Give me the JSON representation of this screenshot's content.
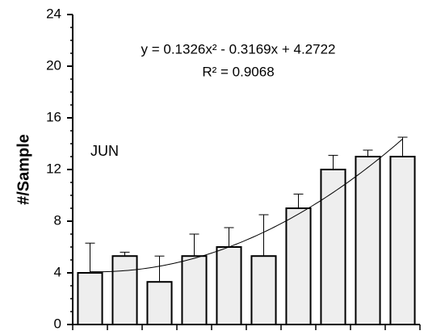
{
  "chart_data": {
    "type": "bar",
    "y_label": "#/Sample",
    "annotation": "JUN",
    "categories": [
      null,
      null,
      null,
      null,
      null,
      null,
      null,
      null,
      null,
      null
    ],
    "values": [
      4,
      5.3,
      3.3,
      5.3,
      6,
      5.3,
      9,
      12,
      13,
      13
    ],
    "errors": [
      2.3,
      0.3,
      2.0,
      1.7,
      1.5,
      3.2,
      1.1,
      1.1,
      0.5,
      1.5
    ],
    "color": "#eeeeee",
    "ylim": [
      0,
      24
    ],
    "yticks": [
      0,
      4,
      8,
      12,
      16,
      20,
      24
    ],
    "trendline": {
      "equation": "y = 0.1326x² - 0.3169x + 4.2722",
      "r2": "R² = 0.9068",
      "coefficients": [
        0.1326,
        -0.3169,
        4.2722
      ]
    }
  }
}
